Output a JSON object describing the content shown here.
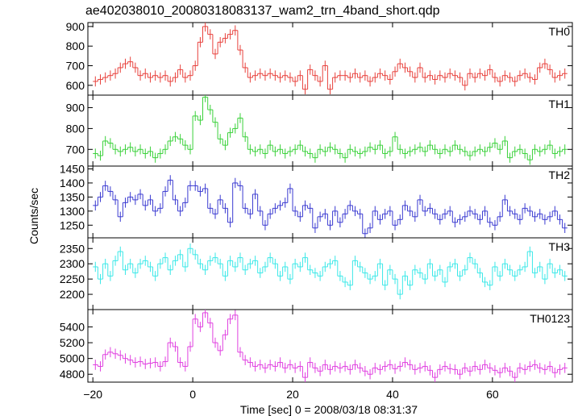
{
  "title": "ae402038010_20080318083137_wam2_trn_4band_short.qdp",
  "xlabel": "Time [sec] 0 = 2008/03/18 08:31:37",
  "ylabel": "Counts/sec",
  "x_ticks": [
    -20,
    0,
    20,
    40,
    60
  ],
  "x_tick_labels": [
    "−20",
    "0",
    "20",
    "40",
    "60"
  ],
  "chart_data": [
    {
      "type": "line",
      "name": "TH0",
      "color": "#e8413c",
      "xlim": [
        -21,
        76
      ],
      "ylim": [
        550,
        920
      ],
      "yticks": [
        600,
        700,
        800,
        900
      ],
      "x": [
        -19.5,
        -18.5,
        -17.5,
        -16.5,
        -15.5,
        -14.5,
        -13.5,
        -12.5,
        -11.5,
        -10.5,
        -9.5,
        -8.5,
        -7.5,
        -6.5,
        -5.5,
        -4.5,
        -3.5,
        -2.5,
        -1.5,
        -0.5,
        0.5,
        1.5,
        2.5,
        3.5,
        4.5,
        5.5,
        6.5,
        7.5,
        8.5,
        9.5,
        10.5,
        11.5,
        12.5,
        13.5,
        14.5,
        15.5,
        16.5,
        17.5,
        18.5,
        19.5,
        20.5,
        21.5,
        22.5,
        23.5,
        24.5,
        25.5,
        26.5,
        27.5,
        28.5,
        29.5,
        30.5,
        31.5,
        32.5,
        33.5,
        34.5,
        35.5,
        36.5,
        37.5,
        38.5,
        39.5,
        40.5,
        41.5,
        42.5,
        43.5,
        44.5,
        45.5,
        46.5,
        47.5,
        48.5,
        49.5,
        50.5,
        51.5,
        52.5,
        53.5,
        54.5,
        55.5,
        56.5,
        57.5,
        58.5,
        59.5,
        60.5,
        61.5,
        62.5,
        63.5,
        64.5,
        65.5,
        66.5,
        67.5,
        68.5,
        69.5,
        70.5,
        71.5,
        72.5,
        73.5,
        74.5
      ],
      "values": [
        620,
        630,
        640,
        650,
        660,
        690,
        710,
        720,
        690,
        650,
        660,
        640,
        650,
        640,
        650,
        620,
        640,
        680,
        640,
        650,
        700,
        820,
        900,
        860,
        760,
        820,
        840,
        860,
        880,
        780,
        690,
        640,
        650,
        660,
        650,
        660,
        650,
        640,
        650,
        640,
        620,
        650,
        580,
        680,
        650,
        620,
        700,
        580,
        640,
        650,
        650,
        640,
        660,
        640,
        650,
        620,
        640,
        660,
        650,
        630,
        670,
        710,
        690,
        670,
        640,
        690,
        640,
        650,
        630,
        650,
        640,
        660,
        650,
        640,
        600,
        660,
        640,
        660,
        650,
        680,
        640,
        620,
        650,
        640,
        620,
        650,
        660,
        640,
        630,
        690,
        710,
        680,
        640,
        650,
        660
      ]
    },
    {
      "type": "line",
      "name": "TH1",
      "color": "#3ad13a",
      "xlim": [
        -21,
        76
      ],
      "ylim": [
        620,
        960
      ],
      "yticks": [
        700,
        800,
        900
      ],
      "x": [
        -19.5,
        -18.5,
        -17.5,
        -16.5,
        -15.5,
        -14.5,
        -13.5,
        -12.5,
        -11.5,
        -10.5,
        -9.5,
        -8.5,
        -7.5,
        -6.5,
        -5.5,
        -4.5,
        -3.5,
        -2.5,
        -1.5,
        -0.5,
        0.5,
        1.5,
        2.5,
        3.5,
        4.5,
        5.5,
        6.5,
        7.5,
        8.5,
        9.5,
        10.5,
        11.5,
        12.5,
        13.5,
        14.5,
        15.5,
        16.5,
        17.5,
        18.5,
        19.5,
        20.5,
        21.5,
        22.5,
        23.5,
        24.5,
        25.5,
        26.5,
        27.5,
        28.5,
        29.5,
        30.5,
        31.5,
        32.5,
        33.5,
        34.5,
        35.5,
        36.5,
        37.5,
        38.5,
        39.5,
        40.5,
        41.5,
        42.5,
        43.5,
        44.5,
        45.5,
        46.5,
        47.5,
        48.5,
        49.5,
        50.5,
        51.5,
        52.5,
        53.5,
        54.5,
        55.5,
        56.5,
        57.5,
        58.5,
        59.5,
        60.5,
        61.5,
        62.5,
        63.5,
        64.5,
        65.5,
        66.5,
        67.5,
        68.5,
        69.5,
        70.5,
        71.5,
        72.5,
        73.5,
        74.5
      ],
      "values": [
        680,
        670,
        740,
        730,
        700,
        690,
        700,
        710,
        690,
        700,
        680,
        690,
        660,
        680,
        700,
        740,
        760,
        750,
        720,
        700,
        860,
        840,
        950,
        890,
        830,
        750,
        720,
        780,
        800,
        850,
        760,
        700,
        690,
        700,
        680,
        720,
        690,
        700,
        680,
        690,
        700,
        720,
        690,
        680,
        660,
        700,
        690,
        710,
        700,
        680,
        660,
        700,
        690,
        680,
        690,
        710,
        700,
        720,
        680,
        690,
        760,
        700,
        680,
        690,
        700,
        710,
        690,
        720,
        700,
        680,
        700,
        690,
        720,
        700,
        690,
        670,
        690,
        700,
        690,
        710,
        730,
        700,
        740,
        660,
        690,
        700,
        680,
        650,
        700,
        690,
        700,
        720,
        680,
        690,
        700
      ]
    },
    {
      "type": "line",
      "name": "TH2",
      "color": "#3a3ad1",
      "xlim": [
        -21,
        76
      ],
      "ylim": [
        1205,
        1460
      ],
      "yticks": [
        1250,
        1300,
        1350,
        1400,
        1450
      ],
      "ytick_labels": [
        "1250",
        "1300",
        "1350",
        "1400",
        "1450"
      ],
      "x": [
        -19.5,
        -18.5,
        -17.5,
        -16.5,
        -15.5,
        -14.5,
        -13.5,
        -12.5,
        -11.5,
        -10.5,
        -9.5,
        -8.5,
        -7.5,
        -6.5,
        -5.5,
        -4.5,
        -3.5,
        -2.5,
        -1.5,
        -0.5,
        0.5,
        1.5,
        2.5,
        3.5,
        4.5,
        5.5,
        6.5,
        7.5,
        8.5,
        9.5,
        10.5,
        11.5,
        12.5,
        13.5,
        14.5,
        15.5,
        16.5,
        17.5,
        18.5,
        19.5,
        20.5,
        21.5,
        22.5,
        23.5,
        24.5,
        25.5,
        26.5,
        27.5,
        28.5,
        29.5,
        30.5,
        31.5,
        32.5,
        33.5,
        34.5,
        35.5,
        36.5,
        37.5,
        38.5,
        39.5,
        40.5,
        41.5,
        42.5,
        43.5,
        44.5,
        45.5,
        46.5,
        47.5,
        48.5,
        49.5,
        50.5,
        51.5,
        52.5,
        53.5,
        54.5,
        55.5,
        56.5,
        57.5,
        58.5,
        59.5,
        60.5,
        61.5,
        62.5,
        63.5,
        64.5,
        65.5,
        66.5,
        67.5,
        68.5,
        69.5,
        70.5,
        71.5,
        72.5,
        73.5,
        74.5
      ],
      "values": [
        1320,
        1350,
        1390,
        1370,
        1340,
        1280,
        1330,
        1350,
        1340,
        1360,
        1320,
        1340,
        1300,
        1310,
        1370,
        1410,
        1340,
        1300,
        1330,
        1390,
        1390,
        1370,
        1380,
        1310,
        1290,
        1340,
        1310,
        1260,
        1400,
        1390,
        1310,
        1290,
        1360,
        1300,
        1250,
        1290,
        1310,
        1320,
        1330,
        1380,
        1300,
        1280,
        1320,
        1310,
        1240,
        1280,
        1290,
        1250,
        1300,
        1260,
        1290,
        1320,
        1300,
        1290,
        1220,
        1240,
        1300,
        1270,
        1290,
        1300,
        1250,
        1270,
        1320,
        1300,
        1280,
        1340,
        1300,
        1310,
        1290,
        1270,
        1290,
        1300,
        1260,
        1270,
        1280,
        1300,
        1290,
        1270,
        1300,
        1260,
        1250,
        1280,
        1340,
        1300,
        1290,
        1270,
        1310,
        1300,
        1280,
        1290,
        1270,
        1280,
        1300,
        1270,
        1240
      ]
    },
    {
      "type": "line",
      "name": "TH3",
      "color": "#3ae8e8",
      "xlim": [
        -21,
        76
      ],
      "ylim": [
        2150,
        2385
      ],
      "yticks": [
        2200,
        2250,
        2300,
        2350
      ],
      "x": [
        -19.5,
        -18.5,
        -17.5,
        -16.5,
        -15.5,
        -14.5,
        -13.5,
        -12.5,
        -11.5,
        -10.5,
        -9.5,
        -8.5,
        -7.5,
        -6.5,
        -5.5,
        -4.5,
        -3.5,
        -2.5,
        -1.5,
        -0.5,
        0.5,
        1.5,
        2.5,
        3.5,
        4.5,
        5.5,
        6.5,
        7.5,
        8.5,
        9.5,
        10.5,
        11.5,
        12.5,
        13.5,
        14.5,
        15.5,
        16.5,
        17.5,
        18.5,
        19.5,
        20.5,
        21.5,
        22.5,
        23.5,
        24.5,
        25.5,
        26.5,
        27.5,
        28.5,
        29.5,
        30.5,
        31.5,
        32.5,
        33.5,
        34.5,
        35.5,
        36.5,
        37.5,
        38.5,
        39.5,
        40.5,
        41.5,
        42.5,
        43.5,
        44.5,
        45.5,
        46.5,
        47.5,
        48.5,
        49.5,
        50.5,
        51.5,
        52.5,
        53.5,
        54.5,
        55.5,
        56.5,
        57.5,
        58.5,
        59.5,
        60.5,
        61.5,
        62.5,
        63.5,
        64.5,
        65.5,
        66.5,
        67.5,
        68.5,
        69.5,
        70.5,
        71.5,
        72.5,
        73.5,
        74.5
      ],
      "values": [
        2290,
        2250,
        2300,
        2260,
        2310,
        2340,
        2280,
        2300,
        2270,
        2300,
        2310,
        2290,
        2260,
        2300,
        2320,
        2280,
        2310,
        2330,
        2290,
        2350,
        2330,
        2300,
        2280,
        2310,
        2320,
        2300,
        2260,
        2310,
        2290,
        2320,
        2280,
        2300,
        2310,
        2270,
        2290,
        2320,
        2300,
        2260,
        2290,
        2250,
        2300,
        2290,
        2320,
        2280,
        2270,
        2260,
        2290,
        2300,
        2310,
        2260,
        2240,
        2230,
        2310,
        2290,
        2270,
        2250,
        2260,
        2300,
        2230,
        2280,
        2250,
        2200,
        2260,
        2230,
        2280,
        2270,
        2250,
        2300,
        2260,
        2280,
        2240,
        2290,
        2300,
        2260,
        2280,
        2320,
        2300,
        2270,
        2240,
        2230,
        2290,
        2260,
        2300,
        2280,
        2260,
        2280,
        2290,
        2340,
        2270,
        2290,
        2250,
        2300,
        2270,
        2280,
        2260
      ]
    },
    {
      "type": "line",
      "name": "TH0123",
      "color": "#e040e0",
      "xlim": [
        -21,
        76
      ],
      "ylim": [
        4700,
        5620
      ],
      "yticks": [
        4800,
        5000,
        5200,
        5400
      ],
      "x": [
        -19.5,
        -18.5,
        -17.5,
        -16.5,
        -15.5,
        -14.5,
        -13.5,
        -12.5,
        -11.5,
        -10.5,
        -9.5,
        -8.5,
        -7.5,
        -6.5,
        -5.5,
        -4.5,
        -3.5,
        -2.5,
        -1.5,
        -0.5,
        0.5,
        1.5,
        2.5,
        3.5,
        4.5,
        5.5,
        6.5,
        7.5,
        8.5,
        9.5,
        10.5,
        11.5,
        12.5,
        13.5,
        14.5,
        15.5,
        16.5,
        17.5,
        18.5,
        19.5,
        20.5,
        21.5,
        22.5,
        23.5,
        24.5,
        25.5,
        26.5,
        27.5,
        28.5,
        29.5,
        30.5,
        31.5,
        32.5,
        33.5,
        34.5,
        35.5,
        36.5,
        37.5,
        38.5,
        39.5,
        40.5,
        41.5,
        42.5,
        43.5,
        44.5,
        45.5,
        46.5,
        47.5,
        48.5,
        49.5,
        50.5,
        51.5,
        52.5,
        53.5,
        54.5,
        55.5,
        56.5,
        57.5,
        58.5,
        59.5,
        60.5,
        61.5,
        62.5,
        63.5,
        64.5,
        65.5,
        66.5,
        67.5,
        68.5,
        69.5,
        70.5,
        71.5,
        72.5,
        73.5,
        74.5
      ],
      "values": [
        4920,
        4900,
        5050,
        5080,
        5060,
        5040,
        5000,
        4980,
        4950,
        4960,
        4930,
        4940,
        4950,
        4900,
        4960,
        5200,
        5150,
        4950,
        4900,
        5150,
        5500,
        5400,
        5580,
        5450,
        5200,
        5100,
        5300,
        5500,
        5550,
        5080,
        4980,
        4950,
        4900,
        4920,
        4880,
        4920,
        4900,
        4950,
        4880,
        4920,
        4880,
        4900,
        4760,
        4950,
        4880,
        4840,
        4920,
        4860,
        4900,
        4880,
        4900,
        4860,
        4920,
        4880,
        4840,
        4800,
        4880,
        4860,
        4900,
        4920,
        4870,
        4900,
        4950,
        4920,
        4860,
        4880,
        4900,
        4850,
        4760,
        4860,
        4900,
        4870,
        4860,
        4800,
        4880,
        4840,
        4900,
        4860,
        4920,
        4880,
        4850,
        4820,
        4880,
        4840,
        4760,
        4880,
        4860,
        4900,
        4920,
        4880,
        4860,
        4900,
        4820,
        4860,
        4880
      ]
    }
  ]
}
